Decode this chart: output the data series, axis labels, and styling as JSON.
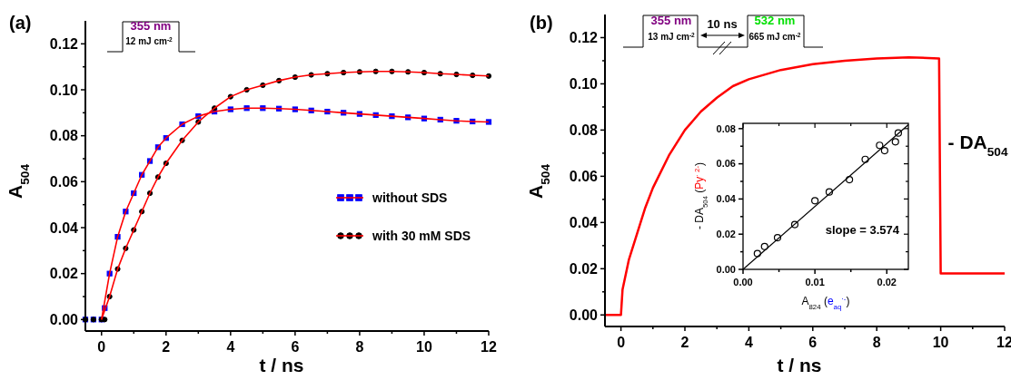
{
  "chart_data": [
    {
      "type": "scatter",
      "title": "(a)",
      "xlabel": "t / ns",
      "ylabel": "A$_{504}$",
      "xlim": [
        -0.5,
        12
      ],
      "ylim": [
        -0.005,
        0.13
      ],
      "xticks": [
        0,
        {
          "value": 1,
          "label": null
        },
        2,
        {
          "value": 3,
          "label": null
        },
        4,
        {
          "value": 5,
          "label": null
        },
        6,
        {
          "value": 7,
          "label": null
        },
        8,
        {
          "value": 9,
          "label": null
        },
        10,
        {
          "value": 11,
          "label": null
        },
        12
      ],
      "yticks": [
        {
          "value": 0,
          "label": "0.00"
        },
        {
          "value": 0.01,
          "label": null
        },
        0.02,
        {
          "value": 0.03,
          "label": null
        },
        0.04,
        {
          "value": 0.05,
          "label": null
        },
        0.06,
        {
          "value": 0.07,
          "label": null
        },
        {
          "value": 0.08,
          "label": "0.08"
        },
        {
          "value": 0.09,
          "label": null
        },
        {
          "value": 0.1,
          "label": "0.10"
        },
        {
          "value": 0.11,
          "label": null
        },
        0.12
      ],
      "x": [
        -0.5,
        -0.25,
        0,
        0.1,
        0.25,
        0.5,
        0.75,
        1,
        1.25,
        1.5,
        1.75,
        2,
        2.5,
        3,
        3.5,
        4,
        4.5,
        5,
        5.5,
        6,
        6.5,
        7,
        7.5,
        8,
        8.5,
        9,
        9.5,
        10,
        10.5,
        11,
        11.5,
        12
      ],
      "legend": "right",
      "grid": false,
      "annotations": [
        "355 nm",
        "12 mJ cm$^{-2}$"
      ],
      "series": [
        {
          "name": "without SDS",
          "color": "#0000ff",
          "marker": "square",
          "values": [
            0,
            0,
            0,
            0.005,
            0.02,
            0.036,
            0.047,
            0.055,
            0.063,
            0.069,
            0.075,
            0.079,
            0.085,
            0.0885,
            0.0905,
            0.0915,
            0.092,
            0.092,
            0.0918,
            0.0915,
            0.091,
            0.0905,
            0.09,
            0.0895,
            0.089,
            0.0885,
            0.088,
            0.0875,
            0.087,
            0.0865,
            0.0862,
            0.086
          ]
        },
        {
          "name": "with 30 mM SDS",
          "color": "#000000",
          "marker": "circle",
          "values": [
            0,
            0,
            0,
            0,
            0.01,
            0.022,
            0.031,
            0.039,
            0.047,
            0.055,
            0.062,
            0.068,
            0.078,
            0.086,
            0.092,
            0.097,
            0.1,
            0.102,
            0.104,
            0.1055,
            0.1065,
            0.107,
            0.1075,
            0.1078,
            0.108,
            0.108,
            0.1078,
            0.1075,
            0.107,
            0.1067,
            0.1063,
            0.106
          ]
        },
        {
          "type": "line",
          "color": "#ff0000",
          "x": [
            0,
            0.25,
            0.5,
            0.75,
            1,
            1.25,
            1.5,
            1.75,
            2,
            2.5,
            3,
            3.5,
            4,
            4.5,
            5,
            5.5,
            6,
            6.5,
            7,
            7.5,
            8,
            8.5,
            9,
            9.5,
            10,
            10.5,
            11,
            11.5,
            12
          ],
          "values": [
            0,
            0.02,
            0.036,
            0.047,
            0.055,
            0.063,
            0.069,
            0.075,
            0.079,
            0.085,
            0.0885,
            0.0905,
            0.0915,
            0.092,
            0.092,
            0.0918,
            0.0915,
            0.091,
            0.0905,
            0.09,
            0.0895,
            0.089,
            0.0885,
            0.088,
            0.0875,
            0.087,
            0.0865,
            0.0862,
            0.086
          ]
        },
        {
          "type": "line",
          "color": "#ff0000",
          "x": [
            0,
            0.25,
            0.5,
            0.75,
            1,
            1.25,
            1.5,
            1.75,
            2,
            2.5,
            3,
            3.5,
            4,
            4.5,
            5,
            5.5,
            6,
            6.5,
            7,
            7.5,
            8,
            8.5,
            9,
            9.5,
            10,
            10.5,
            11,
            11.5,
            12
          ],
          "values": [
            0,
            0.01,
            0.022,
            0.031,
            0.039,
            0.047,
            0.055,
            0.062,
            0.068,
            0.078,
            0.086,
            0.092,
            0.097,
            0.1,
            0.102,
            0.104,
            0.1055,
            0.1065,
            0.107,
            0.1075,
            0.1078,
            0.108,
            0.108,
            0.1078,
            0.1075,
            0.107,
            0.1067,
            0.1063,
            0.106
          ]
        }
      ]
    },
    {
      "type": "line",
      "title": "(b)",
      "xlabel": "t / ns",
      "ylabel": "A$_{504}$",
      "xlim": [
        -0.5,
        12
      ],
      "ylim": [
        -0.005,
        0.13
      ],
      "xticks": [
        0,
        {
          "value": 1,
          "label": null
        },
        2,
        {
          "value": 3,
          "label": null
        },
        4,
        {
          "value": 5,
          "label": null
        },
        6,
        {
          "value": 7,
          "label": null
        },
        8,
        {
          "value": 9,
          "label": null
        },
        10,
        {
          "value": 11,
          "label": null
        },
        12
      ],
      "yticks": [
        {
          "value": 0,
          "label": "0.00"
        },
        {
          "value": 0.01,
          "label": null
        },
        0.02,
        {
          "value": 0.03,
          "label": null
        },
        0.04,
        {
          "value": 0.05,
          "label": null
        },
        0.06,
        {
          "value": 0.07,
          "label": null
        },
        {
          "value": 0.08,
          "label": "0.08"
        },
        {
          "value": 0.09,
          "label": null
        },
        {
          "value": 0.1,
          "label": "0.10"
        },
        {
          "value": 0.11,
          "label": null
        },
        0.12
      ],
      "x": [
        -0.5,
        -0.25,
        0,
        0.05,
        0.25,
        0.5,
        0.75,
        1,
        1.5,
        2,
        2.5,
        3,
        3.5,
        4,
        5,
        6,
        7,
        8,
        9,
        9.95,
        10,
        10.5,
        11,
        11.5,
        12
      ],
      "grid": false,
      "annotations": [
        "355 nm",
        "13 mJ cm$^{-2}$",
        "10 ns",
        "532 nm",
        "665 mJ cm$^{-2}$",
        {
          "text": "- DA$_{504}$",
          "x": 10,
          "y": 0.072
        }
      ],
      "series": [
        {
          "color": "#ff0000",
          "values": [
            0,
            0,
            0,
            0.011,
            0.024,
            0.035,
            0.046,
            0.055,
            0.069,
            0.08,
            0.088,
            0.094,
            0.099,
            0.102,
            0.106,
            0.1085,
            0.11,
            0.111,
            0.1115,
            0.111,
            0.018,
            0.018,
            0.018,
            0.018,
            0.018
          ]
        }
      ]
    },
    {
      "type": "scatter",
      "xlabel": "A$_{824}$ (e$_{aq}$$^{·-}$)",
      "ylabel": "- DA$_{504}$ (Py$^{· 2-}$)",
      "xlim": [
        0,
        0.023
      ],
      "ylim": [
        0,
        0.083
      ],
      "xticks": [
        {
          "value": 0,
          "label": "0.00"
        },
        {
          "value": 0.005,
          "label": null
        },
        0.01,
        {
          "value": 0.015,
          "label": null
        },
        0.02
      ],
      "yticks": [
        {
          "value": 0,
          "label": "0.00"
        },
        {
          "value": 0.01,
          "label": null
        },
        0.02,
        {
          "value": 0.03,
          "label": null
        },
        0.04,
        {
          "value": 0.05,
          "label": null
        },
        0.06,
        {
          "value": 0.07,
          "label": null
        },
        {
          "value": 0.08,
          "label": "0.08"
        }
      ],
      "grid": false,
      "annotations": [
        "slope = 3.574"
      ],
      "series": [
        {
          "color": "#000000",
          "marker": "circle",
          "x": [
            0.002,
            0.003,
            0.0048,
            0.0072,
            0.01,
            0.012,
            0.0148,
            0.017,
            0.019,
            0.0197,
            0.0212,
            0.0216
          ],
          "values": [
            0.009,
            0.013,
            0.018,
            0.0255,
            0.039,
            0.044,
            0.051,
            0.0625,
            0.0705,
            0.0675,
            0.0725,
            0.0775
          ]
        },
        {
          "type": "line",
          "color": "#000000",
          "x": [
            0,
            0.023
          ],
          "values": [
            0,
            0.0822
          ]
        }
      ]
    }
  ]
}
